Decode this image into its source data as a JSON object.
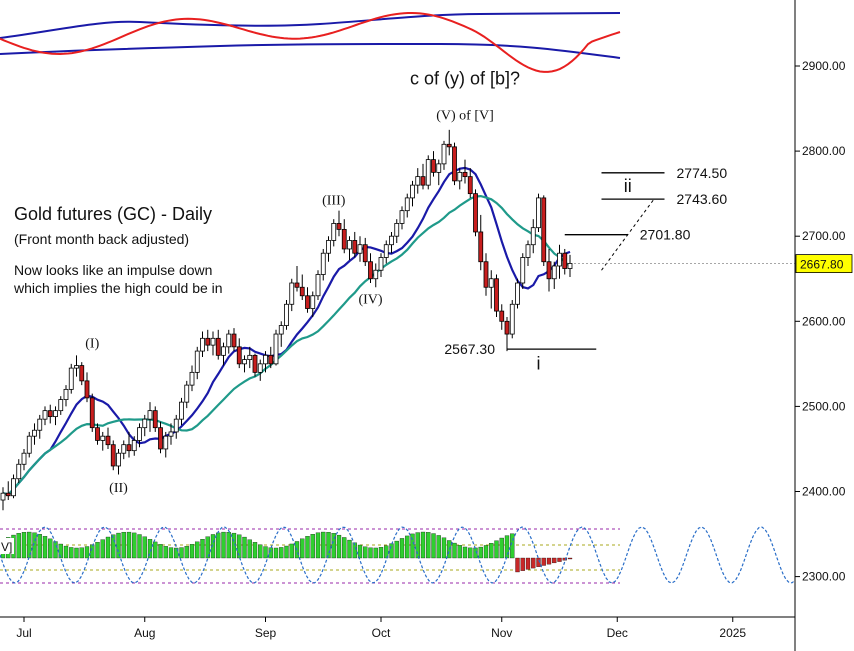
{
  "chart_data": {
    "type": "candlestick",
    "title": "Gold futures (GC) - Daily",
    "subtitle": "(Front month back adjusted)",
    "note_lines": [
      "Now looks like an impulse down",
      "which implies the high could be in"
    ],
    "ylim": [
      2270,
      2965
    ],
    "y_ticks": [
      {
        "value": 2900,
        "label": "2900.00"
      },
      {
        "value": 2800,
        "label": "2800.00"
      },
      {
        "value": 2700,
        "label": "2700.00"
      },
      {
        "value": 2600,
        "label": "2600.00"
      },
      {
        "value": 2500,
        "label": "2500.00"
      },
      {
        "value": 2400,
        "label": "2400.00"
      },
      {
        "value": 2300,
        "label": "2300.00"
      }
    ],
    "x_ticks": [
      {
        "index": 4,
        "label": "Jul"
      },
      {
        "index": 27,
        "label": "Aug"
      },
      {
        "index": 50,
        "label": "Sep"
      },
      {
        "index": 72,
        "label": "Oct"
      },
      {
        "index": 95,
        "label": "Nov"
      },
      {
        "index": 117,
        "label": "Dec"
      },
      {
        "index": 139,
        "label": "2025"
      }
    ],
    "last_price": {
      "value": 2667.8,
      "label": "2667.80",
      "color": "#ffff00"
    },
    "candles": [
      [
        2390,
        2405,
        2378,
        2398
      ],
      [
        2398,
        2412,
        2390,
        2395
      ],
      [
        2395,
        2420,
        2392,
        2415
      ],
      [
        2415,
        2438,
        2410,
        2432
      ],
      [
        2432,
        2450,
        2425,
        2445
      ],
      [
        2445,
        2470,
        2440,
        2465
      ],
      [
        2465,
        2480,
        2455,
        2472
      ],
      [
        2472,
        2490,
        2462,
        2485
      ],
      [
        2485,
        2500,
        2478,
        2495
      ],
      [
        2495,
        2502,
        2480,
        2488
      ],
      [
        2488,
        2500,
        2478,
        2495
      ],
      [
        2495,
        2512,
        2490,
        2508
      ],
      [
        2508,
        2525,
        2500,
        2520
      ],
      [
        2520,
        2550,
        2515,
        2545
      ],
      [
        2545,
        2560,
        2535,
        2548
      ],
      [
        2548,
        2552,
        2525,
        2530
      ],
      [
        2530,
        2540,
        2505,
        2510
      ],
      [
        2510,
        2515,
        2470,
        2475
      ],
      [
        2475,
        2480,
        2455,
        2460
      ],
      [
        2460,
        2470,
        2448,
        2465
      ],
      [
        2465,
        2475,
        2450,
        2455
      ],
      [
        2455,
        2460,
        2425,
        2430
      ],
      [
        2430,
        2450,
        2420,
        2445
      ],
      [
        2445,
        2460,
        2438,
        2455
      ],
      [
        2455,
        2470,
        2440,
        2448
      ],
      [
        2448,
        2465,
        2442,
        2460
      ],
      [
        2460,
        2480,
        2452,
        2475
      ],
      [
        2475,
        2490,
        2465,
        2485
      ],
      [
        2485,
        2505,
        2470,
        2495
      ],
      [
        2495,
        2500,
        2470,
        2475
      ],
      [
        2475,
        2482,
        2445,
        2450
      ],
      [
        2450,
        2470,
        2440,
        2465
      ],
      [
        2465,
        2480,
        2455,
        2470
      ],
      [
        2470,
        2490,
        2462,
        2485
      ],
      [
        2485,
        2510,
        2478,
        2505
      ],
      [
        2505,
        2530,
        2498,
        2525
      ],
      [
        2525,
        2548,
        2518,
        2540
      ],
      [
        2540,
        2570,
        2532,
        2565
      ],
      [
        2565,
        2588,
        2558,
        2580
      ],
      [
        2580,
        2590,
        2565,
        2572
      ],
      [
        2572,
        2588,
        2560,
        2580
      ],
      [
        2580,
        2590,
        2555,
        2560
      ],
      [
        2560,
        2575,
        2548,
        2570
      ],
      [
        2570,
        2590,
        2562,
        2585
      ],
      [
        2585,
        2592,
        2565,
        2570
      ],
      [
        2570,
        2580,
        2545,
        2550
      ],
      [
        2550,
        2560,
        2540,
        2555
      ],
      [
        2555,
        2570,
        2545,
        2560
      ],
      [
        2560,
        2562,
        2535,
        2540
      ],
      [
        2540,
        2555,
        2530,
        2550
      ],
      [
        2550,
        2565,
        2540,
        2560
      ],
      [
        2560,
        2570,
        2545,
        2550
      ],
      [
        2550,
        2590,
        2548,
        2585
      ],
      [
        2585,
        2600,
        2570,
        2595
      ],
      [
        2595,
        2625,
        2590,
        2620
      ],
      [
        2620,
        2650,
        2612,
        2645
      ],
      [
        2645,
        2665,
        2635,
        2640
      ],
      [
        2640,
        2655,
        2625,
        2630
      ],
      [
        2630,
        2640,
        2610,
        2615
      ],
      [
        2615,
        2635,
        2605,
        2630
      ],
      [
        2630,
        2660,
        2625,
        2655
      ],
      [
        2655,
        2685,
        2648,
        2680
      ],
      [
        2680,
        2700,
        2670,
        2695
      ],
      [
        2695,
        2720,
        2688,
        2715
      ],
      [
        2715,
        2730,
        2700,
        2708
      ],
      [
        2708,
        2720,
        2680,
        2685
      ],
      [
        2685,
        2700,
        2672,
        2695
      ],
      [
        2695,
        2705,
        2675,
        2680
      ],
      [
        2680,
        2700,
        2670,
        2690
      ],
      [
        2690,
        2698,
        2665,
        2670
      ],
      [
        2670,
        2680,
        2645,
        2650
      ],
      [
        2650,
        2668,
        2640,
        2660
      ],
      [
        2660,
        2680,
        2652,
        2675
      ],
      [
        2675,
        2695,
        2668,
        2690
      ],
      [
        2690,
        2705,
        2680,
        2700
      ],
      [
        2700,
        2720,
        2692,
        2715
      ],
      [
        2715,
        2735,
        2708,
        2730
      ],
      [
        2730,
        2750,
        2722,
        2745
      ],
      [
        2745,
        2765,
        2735,
        2760
      ],
      [
        2760,
        2780,
        2750,
        2770
      ],
      [
        2770,
        2785,
        2755,
        2760
      ],
      [
        2760,
        2795,
        2755,
        2790
      ],
      [
        2790,
        2800,
        2770,
        2775
      ],
      [
        2775,
        2790,
        2760,
        2785
      ],
      [
        2785,
        2812,
        2778,
        2808
      ],
      [
        2808,
        2825,
        2795,
        2805
      ],
      [
        2805,
        2810,
        2760,
        2765
      ],
      [
        2765,
        2780,
        2755,
        2775
      ],
      [
        2775,
        2790,
        2762,
        2770
      ],
      [
        2770,
        2780,
        2745,
        2750
      ],
      [
        2750,
        2755,
        2700,
        2705
      ],
      [
        2705,
        2725,
        2660,
        2670
      ],
      [
        2670,
        2680,
        2630,
        2640
      ],
      [
        2640,
        2660,
        2615,
        2650
      ],
      [
        2650,
        2655,
        2605,
        2612
      ],
      [
        2612,
        2620,
        2590,
        2600
      ],
      [
        2600,
        2605,
        2565,
        2585
      ],
      [
        2585,
        2625,
        2580,
        2620
      ],
      [
        2620,
        2650,
        2615,
        2645
      ],
      [
        2645,
        2680,
        2638,
        2675
      ],
      [
        2675,
        2695,
        2665,
        2690
      ],
      [
        2690,
        2720,
        2680,
        2710
      ],
      [
        2710,
        2750,
        2705,
        2745
      ],
      [
        2745,
        2748,
        2665,
        2670
      ],
      [
        2670,
        2685,
        2635,
        2650
      ],
      [
        2650,
        2670,
        2638,
        2665
      ],
      [
        2665,
        2690,
        2650,
        2680
      ],
      [
        2680,
        2685,
        2655,
        2662
      ],
      [
        2662,
        2678,
        2652,
        2668
      ]
    ],
    "moving_averages": [
      {
        "name": "ma-fast",
        "color": "#1a1aa8",
        "period": 10
      },
      {
        "name": "ma-slow",
        "color": "#1f9a8a",
        "period": 20
      }
    ],
    "wave_labels": [
      {
        "text": "(I)",
        "index": 17,
        "value": 2562,
        "position": "above"
      },
      {
        "text": "(II)",
        "index": 22,
        "value": 2418,
        "position": "below"
      },
      {
        "text": "(III)",
        "index": 63,
        "value": 2730,
        "position": "above"
      },
      {
        "text": "(IV)",
        "index": 70,
        "value": 2640,
        "position": "below"
      },
      {
        "text": "(V) of [V]",
        "index": 88,
        "value": 2830,
        "position": "above"
      },
      {
        "text": "c of (y) of [b]?",
        "index": 88,
        "value": 2850,
        "position": "above"
      },
      {
        "text": "i",
        "index": 102,
        "value": 2562,
        "position": "below"
      },
      {
        "text": "ii",
        "index": 119,
        "value": 2745,
        "position": "above"
      }
    ],
    "levels": [
      {
        "value": 2774.5,
        "label": "2774.50"
      },
      {
        "value": 2743.6,
        "label": "2743.60"
      },
      {
        "value": 2701.8,
        "label": "2701.80"
      },
      {
        "value": 2567.3,
        "label": "2567.30"
      }
    ],
    "projection": [
      {
        "index": 114,
        "value": 2660
      },
      {
        "index": 124,
        "value": 2743.6
      }
    ],
    "upper_panel": {
      "band_color": "#1a1aa8",
      "oscillator_color": "#e82020"
    },
    "lower_panel": {
      "positive_color": "#2fcf2f",
      "negative_color": "#c82828",
      "cycle_color": "#2a6ec8",
      "visible_label": "V]"
    }
  }
}
